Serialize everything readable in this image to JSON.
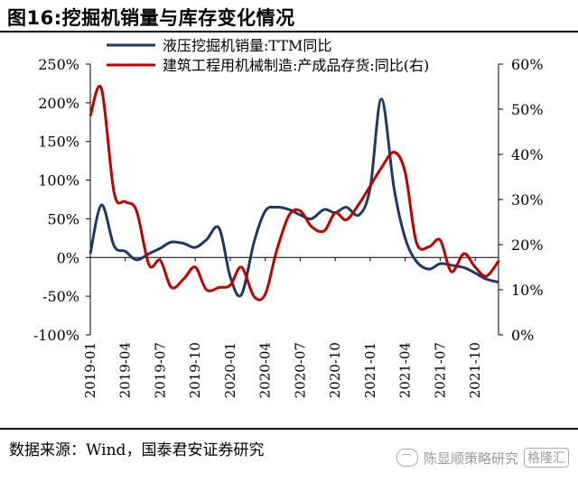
{
  "figure_title": "图16:挖掘机销量与库存变化情况",
  "source": "数据来源：Wind，国泰君安证券研究",
  "watermark": {
    "text": "陈显顺策略研究",
    "badge": "格隆汇"
  },
  "colors": {
    "series1": "#1f3864",
    "series2": "#c00000"
  },
  "chart_data": {
    "type": "line",
    "title": "",
    "x_tick_labels": [
      "2019-01",
      "2019-04",
      "2019-07",
      "2019-10",
      "2020-01",
      "2020-04",
      "2020-07",
      "2020-10",
      "2021-01",
      "2021-04",
      "2021-07",
      "2021-10"
    ],
    "y_left": {
      "ticks": [
        "250%",
        "200%",
        "150%",
        "100%",
        "50%",
        "0%",
        "-50%",
        "-100%"
      ],
      "range": [
        -100,
        250
      ]
    },
    "y_right": {
      "ticks": [
        "60%",
        "50%",
        "40%",
        "30%",
        "20%",
        "10%",
        "0%"
      ],
      "range": [
        0,
        60
      ]
    },
    "legend_position": "top-center",
    "grid": false,
    "series": [
      {
        "name": "液压挖掘机销量:TTM同比",
        "axis": "left",
        "x": [
          2019.0,
          2019.08,
          2019.17,
          2019.25,
          2019.33,
          2019.42,
          2019.5,
          2019.58,
          2019.67,
          2019.75,
          2019.83,
          2019.92,
          2020.0,
          2020.08,
          2020.17,
          2020.25,
          2020.33,
          2020.42,
          2020.5,
          2020.58,
          2020.67,
          2020.75,
          2020.83,
          2020.92,
          2021.0,
          2021.08,
          2021.17,
          2021.25,
          2021.33,
          2021.42,
          2021.5,
          2021.58,
          2021.67,
          2021.75,
          2021.83,
          2021.92
        ],
        "values": [
          5,
          68,
          15,
          8,
          -3,
          5,
          12,
          20,
          18,
          13,
          23,
          38,
          -25,
          -48,
          20,
          60,
          65,
          62,
          55,
          50,
          62,
          58,
          65,
          55,
          90,
          205,
          90,
          25,
          -5,
          -15,
          -8,
          -10,
          -13,
          -20,
          -28,
          -32
        ]
      },
      {
        "name": "建筑工程用机械制造:产成品存货:同比(右)",
        "axis": "right",
        "x": [
          2019.0,
          2019.08,
          2019.17,
          2019.25,
          2019.33,
          2019.42,
          2019.5,
          2019.58,
          2019.67,
          2019.75,
          2019.83,
          2019.92,
          2020.0,
          2020.08,
          2020.17,
          2020.25,
          2020.33,
          2020.42,
          2020.5,
          2020.58,
          2020.67,
          2020.75,
          2020.83,
          2020.92,
          2021.0,
          2021.08,
          2021.17,
          2021.25,
          2021.33,
          2021.42,
          2021.5,
          2021.58,
          2021.67,
          2021.75,
          2021.83,
          2021.92
        ],
        "values": [
          48.5,
          54.5,
          31.5,
          29.5,
          27.5,
          15.5,
          16.5,
          10.5,
          12.5,
          15,
          10,
          10.5,
          11,
          15,
          8.5,
          9,
          18.5,
          26.5,
          27.5,
          24,
          23,
          27,
          25.5,
          29,
          33,
          37,
          40.5,
          36,
          20.5,
          19.5,
          21,
          14,
          18,
          15,
          13,
          16.5
        ]
      }
    ]
  }
}
